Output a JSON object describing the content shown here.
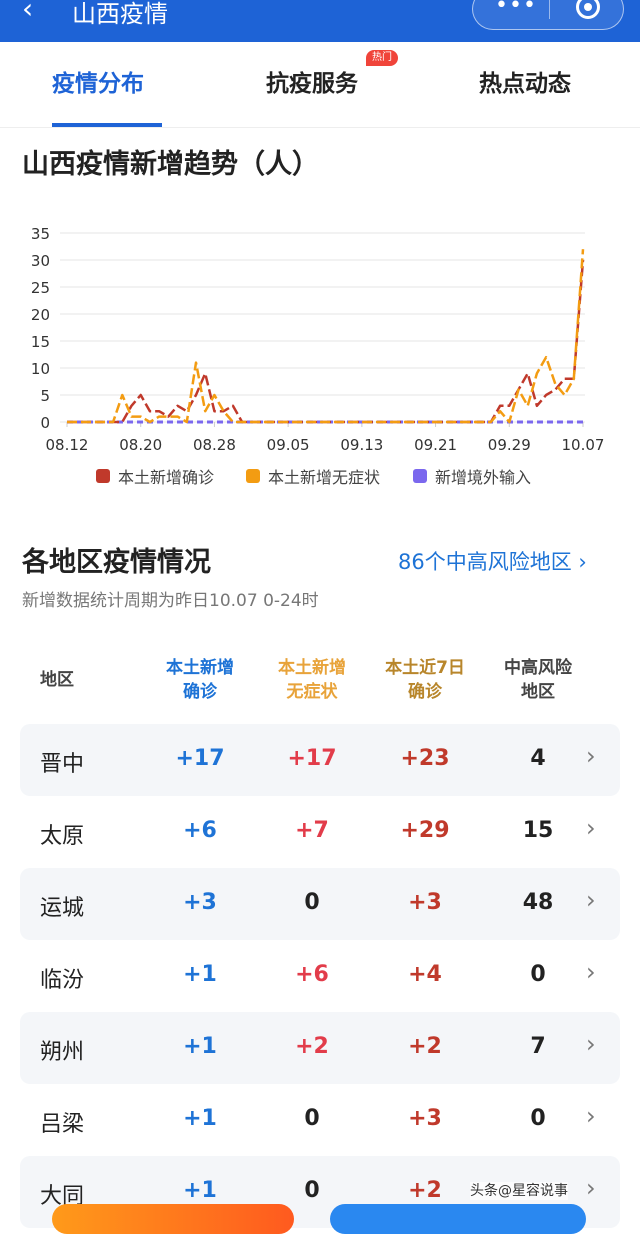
{
  "app": {
    "title": "山西疫情",
    "back_icon": "chevron-left-icon",
    "more_icon": "more-dots-icon",
    "close_icon": "target-icon"
  },
  "tabs": [
    {
      "label": "疫情分布",
      "active": true
    },
    {
      "label": "抗疫服务",
      "badge": "热门"
    },
    {
      "label": "热点动态"
    }
  ],
  "trend": {
    "title": "山西疫情新增趋势（人）"
  },
  "chart_data": {
    "type": "line",
    "title": "山西疫情新增趋势（人）",
    "ylim": [
      0,
      35
    ],
    "yticks": [
      "35",
      "30",
      "25",
      "20",
      "15",
      "10",
      "5",
      "0"
    ],
    "xticks": [
      "08.12",
      "08.20",
      "08.28",
      "09.05",
      "09.13",
      "09.21",
      "09.29",
      "10.07"
    ],
    "grid": true,
    "legend": "bottom",
    "x": [
      "08.12",
      "08.13",
      "08.14",
      "08.15",
      "08.16",
      "08.17",
      "08.18",
      "08.19",
      "08.20",
      "08.21",
      "08.22",
      "08.23",
      "08.24",
      "08.25",
      "08.26",
      "08.27",
      "08.28",
      "08.29",
      "08.30",
      "08.31",
      "09.01",
      "09.02",
      "09.03",
      "09.04",
      "09.05",
      "09.06",
      "09.07",
      "09.08",
      "09.09",
      "09.10",
      "09.11",
      "09.12",
      "09.13",
      "09.14",
      "09.15",
      "09.16",
      "09.17",
      "09.18",
      "09.19",
      "09.20",
      "09.21",
      "09.22",
      "09.23",
      "09.24",
      "09.25",
      "09.26",
      "09.27",
      "09.28",
      "09.29",
      "09.30",
      "10.01",
      "10.02",
      "10.03",
      "10.04",
      "10.05",
      "10.06",
      "10.07"
    ],
    "series": [
      {
        "name": "本土新增确诊",
        "color": "#c0392b",
        "values": [
          0,
          0,
          0,
          0,
          0,
          0,
          0,
          3,
          5,
          2,
          2,
          1,
          3,
          2,
          5,
          9,
          2,
          2,
          3,
          0,
          0,
          0,
          0,
          0,
          0,
          0,
          0,
          0,
          0,
          0,
          0,
          0,
          0,
          0,
          0,
          0,
          0,
          0,
          0,
          0,
          0,
          0,
          0,
          0,
          0,
          0,
          0,
          3,
          3,
          6,
          9,
          3,
          5,
          6,
          8,
          8,
          30
        ]
      },
      {
        "name": "本土新增无症状",
        "color": "#f39c12",
        "values": [
          0,
          0,
          0,
          0,
          0,
          0,
          5,
          1,
          1,
          0,
          1,
          1,
          1,
          0,
          11,
          2,
          5,
          2,
          0,
          0,
          0,
          0,
          0,
          0,
          0,
          0,
          0,
          0,
          0,
          0,
          0,
          0,
          0,
          0,
          0,
          0,
          0,
          0,
          0,
          0,
          0,
          0,
          0,
          0,
          0,
          0,
          0,
          2,
          0,
          6,
          3,
          9,
          12,
          7,
          5,
          8,
          32
        ]
      },
      {
        "name": "新增境外输入",
        "color": "#7b68ee",
        "values": [
          0,
          0,
          0,
          0,
          0,
          0,
          0,
          0,
          0,
          0,
          0,
          0,
          0,
          0,
          0,
          0,
          0,
          0,
          0,
          0,
          0,
          0,
          0,
          0,
          0,
          0,
          0,
          0,
          0,
          0,
          0,
          0,
          0,
          0,
          0,
          0,
          0,
          0,
          0,
          0,
          0,
          0,
          0,
          0,
          0,
          0,
          0,
          0,
          0,
          0,
          0,
          0,
          0,
          0,
          0,
          0,
          0
        ]
      }
    ]
  },
  "regions": {
    "title": "各地区疫情情况",
    "risk_link": "86个中高风险地区 ›",
    "subtitle": "新增数据统计周期为昨日10.07 0-24时",
    "headers": [
      "地区",
      "本土新增\n确诊",
      "本土新增\n无症状",
      "本土近7日\n确诊",
      "中高风险\n地区"
    ],
    "rows": [
      [
        "晋中",
        "+17",
        "+17",
        "+23",
        "4"
      ],
      [
        "太原",
        "+6",
        "+7",
        "+29",
        "15"
      ],
      [
        "运城",
        "+3",
        "0",
        "+3",
        "48"
      ],
      [
        "临汾",
        "+1",
        "+6",
        "+4",
        "0"
      ],
      [
        "朔州",
        "+1",
        "+2",
        "+2",
        "7"
      ],
      [
        "吕梁",
        "+1",
        "0",
        "+3",
        "0"
      ],
      [
        "大同",
        "+1",
        "0",
        "+2",
        ""
      ]
    ]
  },
  "watermark": "头条@星容说事"
}
